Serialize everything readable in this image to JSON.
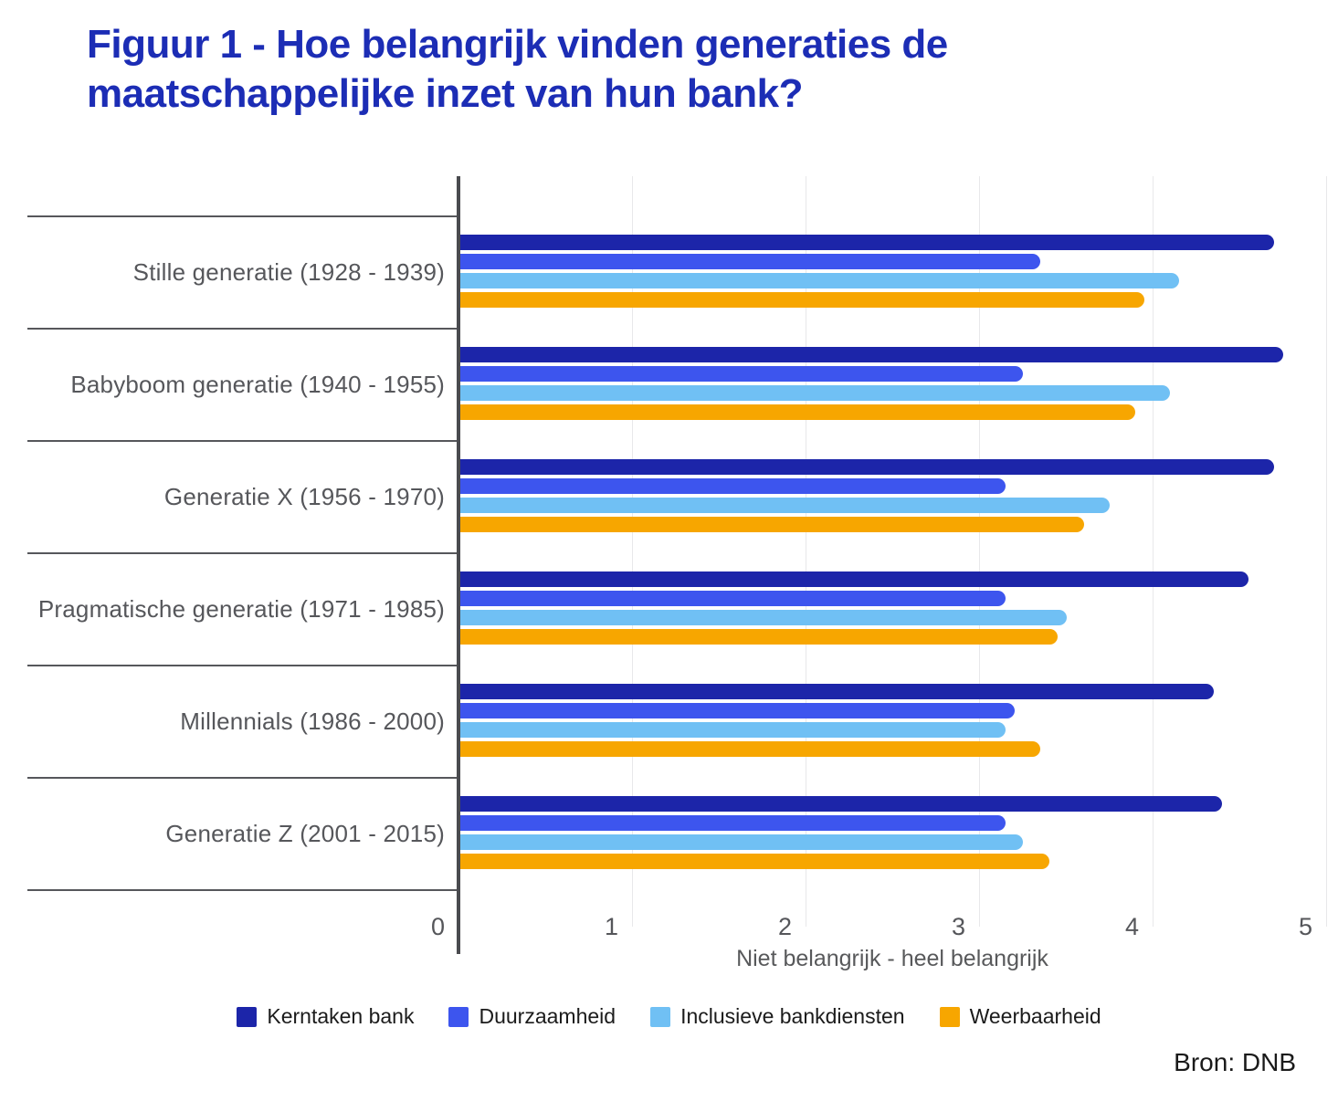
{
  "title": "Figuur 1 - Hoe belangrijk vinden generaties de maatschappelijke inzet van hun bank?",
  "source": "Bron: DNB",
  "chart_data": {
    "type": "bar",
    "orientation": "horizontal",
    "title": "Figuur 1 - Hoe belangrijk vinden generaties de maatschappelijke inzet van hun bank?",
    "categories": [
      "Stille generatie (1928 - 1939)",
      "Babyboom generatie (1940 - 1955)",
      "Generatie X (1956 - 1970)",
      "Pragmatische generatie (1971 - 1985)",
      "Millennials (1986 - 2000)",
      "Generatie Z (2001 - 2015)"
    ],
    "series": [
      {
        "name": "Kerntaken bank",
        "color": "#1c25a9",
        "values": [
          4.7,
          4.75,
          4.7,
          4.55,
          4.35,
          4.4
        ]
      },
      {
        "name": "Duurzaamheid",
        "color": "#3d55ee",
        "values": [
          3.35,
          3.25,
          3.15,
          3.15,
          3.2,
          3.15
        ]
      },
      {
        "name": "Inclusieve bankdiensten",
        "color": "#70c0f4",
        "values": [
          4.15,
          4.1,
          3.75,
          3.5,
          3.15,
          3.25
        ]
      },
      {
        "name": "Weerbaarheid",
        "color": "#f7a600",
        "values": [
          3.95,
          3.9,
          3.6,
          3.45,
          3.35,
          3.4
        ]
      }
    ],
    "xlabel": "Niet belangrijk - heel belangrijk",
    "xlim": [
      0,
      5
    ],
    "xticks": [
      "0",
      "1",
      "2",
      "3",
      "4",
      "5"
    ],
    "grid": true,
    "legend_position": "bottom"
  },
  "colors": {
    "title": "#1c2db5",
    "axis": "#4a4b4f",
    "separator": "#56575b",
    "gridline": "#e8e8ea",
    "tick_text": "#55565a",
    "label_text": "#56575b"
  }
}
